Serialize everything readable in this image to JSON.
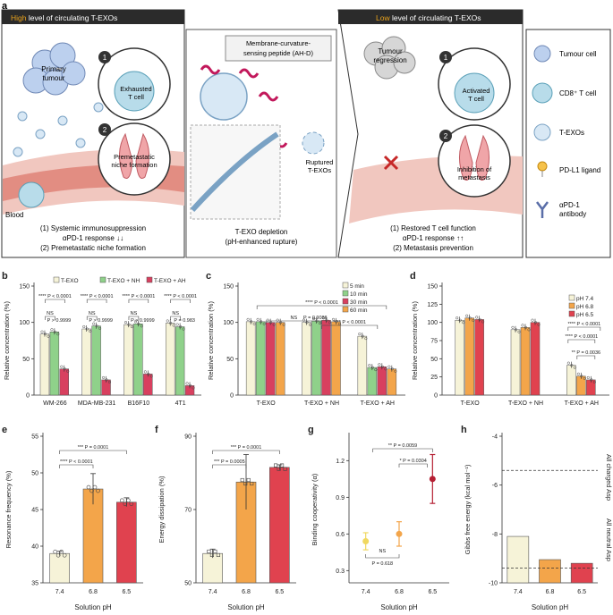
{
  "panel_labels": {
    "a": "a",
    "b": "b",
    "c": "c",
    "d": "d",
    "e": "e",
    "f": "f",
    "g": "g",
    "h": "h"
  },
  "schematic": {
    "left_header_pre": "High",
    "left_header_post": "level of circulating T-EXOs",
    "right_header_pre": "Low",
    "right_header_post": "level of circulating T-EXOs",
    "primary_tumour_1": "Primary",
    "primary_tumour_2": "tumour",
    "exhausted_1": "Exhausted",
    "exhausted_2": "T cell",
    "niche_1": "Premetastatic",
    "niche_2": "niche formation",
    "blood": "Blood",
    "step1": "1",
    "step2": "2",
    "left_caption_1": "(1) Systemic immunosuppression",
    "left_caption_2": "αPD-1 response ↓↓",
    "left_caption_3": "(2) Premetastatic niche formation",
    "peptide_1": "Membrane-curvature-",
    "peptide_2": "sensing peptide (AH-D)",
    "ruptured_1": "Ruptured",
    "ruptured_2": "T-EXOs",
    "mid_caption_1": "T-EXO depletion",
    "mid_caption_2": "(pH-enhanced rupture)",
    "regression_1": "Tumour",
    "regression_2": "regression",
    "activated_1": "Activated",
    "activated_2": "T cell",
    "inhibition_1": "Inhibition of",
    "inhibition_2": "metastasis",
    "right_caption_1": "(1) Restored T cell function",
    "right_caption_2": "αPD-1 response ↑↑",
    "right_caption_3": "(2) Metastasis prevention",
    "legend": [
      "Tumour cell",
      "CD8⁺ T cell",
      "T-EXOs",
      "PD-L1 ligand",
      "αPD-1",
      "antibody"
    ]
  },
  "colors": {
    "cream": "#f6f3d8",
    "green": "#8fd18a",
    "magenta": "#d8405f",
    "orange": "#f3a54a",
    "red": "#e0424f",
    "dark": "#2b2b2b",
    "highlight": "#e8a21c"
  },
  "chart_data": [
    {
      "id": "b",
      "type": "bar",
      "ylabel": "Relative concentration (%)",
      "ylim": [
        0,
        150
      ],
      "yticks": [
        0,
        50,
        100,
        150
      ],
      "categories": [
        "WM-266",
        "MDA-MB-231",
        "B16F10",
        "4T1"
      ],
      "legend": [
        "T-EXO",
        "T-EXO + NH",
        "T-EXO + AH"
      ],
      "series": [
        {
          "name": "T-EXO",
          "values": [
            84,
            91,
            97,
            99
          ]
        },
        {
          "name": "T-EXO + NH",
          "values": [
            87,
            95,
            98,
            94
          ]
        },
        {
          "name": "T-EXO + AH",
          "values": [
            36,
            21,
            29,
            13
          ]
        }
      ],
      "annotations": [
        {
          "text": "**** P < 0.0001",
          "x1": 0,
          "x2": 2
        },
        {
          "text": "NS",
          "x1": 0,
          "x2": 1
        },
        {
          "text": "P > 0.9999",
          "x1": 0,
          "x2": 1
        },
        {
          "text": "**** P < 0.0001",
          "x1": 0,
          "x2": 2
        },
        {
          "text": "NS",
          "x1": 0,
          "x2": 1
        },
        {
          "text": "P > 0.9999",
          "x1": 0,
          "x2": 1
        },
        {
          "text": "**** P < 0.0001",
          "x1": 0,
          "x2": 2
        },
        {
          "text": "NS",
          "x1": 0,
          "x2": 1
        },
        {
          "text": "P > 0.9999",
          "x1": 0,
          "x2": 1
        },
        {
          "text": "**** P < 0.0001",
          "x1": 0,
          "x2": 2
        },
        {
          "text": "NS",
          "x1": 0,
          "x2": 1
        },
        {
          "text": "P = 0.983",
          "x1": 0,
          "x2": 1
        }
      ]
    },
    {
      "id": "c",
      "type": "bar",
      "ylabel": "Relative concentration (%)",
      "ylim": [
        0,
        150
      ],
      "yticks": [
        0,
        50,
        100,
        150
      ],
      "categories": [
        "T-EXO",
        "T-EXO + NH",
        "T-EXO + AH"
      ],
      "legend": [
        "5 min",
        "10 min",
        "30 min",
        "60 min"
      ],
      "series": [
        {
          "name": "5 min",
          "values": [
            101,
            100,
            81
          ]
        },
        {
          "name": "10 min",
          "values": [
            101,
            102,
            38
          ]
        },
        {
          "name": "30 min",
          "values": [
            100,
            103,
            39
          ]
        },
        {
          "name": "60 min",
          "values": [
            100,
            101,
            36
          ]
        }
      ],
      "annotations": [
        {
          "text": "**** P < 0.0001"
        },
        {
          "text": "NS"
        },
        {
          "text": "P = 0.9086"
        },
        {
          "text": "**** P < 0.0001"
        }
      ]
    },
    {
      "id": "d",
      "type": "bar",
      "ylabel": "Relative concentration (%)",
      "ylim": [
        0,
        150
      ],
      "yticks": [
        0,
        25,
        50,
        75,
        100,
        125,
        150
      ],
      "categories": [
        "T-EXO",
        "T-EXO + NH",
        "T-EXO + AH"
      ],
      "legend": [
        "pH 7.4",
        "pH 6.8",
        "pH 6.5"
      ],
      "series": [
        {
          "name": "pH 7.4",
          "values": [
            103,
            90,
            41
          ]
        },
        {
          "name": "pH 6.8",
          "values": [
            106,
            93,
            26
          ]
        },
        {
          "name": "pH 6.5",
          "values": [
            104,
            100,
            21
          ]
        }
      ],
      "annotations": [
        {
          "text": "**** P < 0.0001"
        },
        {
          "text": "**** P < 0.0001"
        },
        {
          "text": "** P = 0.0036"
        }
      ]
    },
    {
      "id": "e",
      "type": "bar",
      "xlabel": "Solution pH",
      "ylabel": "Resonance frequency (%)",
      "ylim": [
        35,
        55
      ],
      "yticks": [
        35,
        40,
        45,
        50,
        55
      ],
      "categories": [
        "7.4",
        "6.8",
        "6.5"
      ],
      "values": [
        39,
        47.8,
        46
      ],
      "errors": [
        0.3,
        2.1,
        0.6
      ],
      "annotations": [
        {
          "text": "*** P = 0.0001"
        },
        {
          "text": "**** P < 0.0001"
        }
      ]
    },
    {
      "id": "f",
      "type": "bar",
      "xlabel": "Solution pH",
      "ylabel": "Energy dissipation (%)",
      "ylim": [
        50,
        90
      ],
      "yticks": [
        50,
        70,
        90
      ],
      "categories": [
        "7.4",
        "6.8",
        "6.5"
      ],
      "values": [
        58,
        77.5,
        81.5
      ],
      "errors": [
        1.2,
        7.5,
        0.7
      ],
      "annotations": [
        {
          "text": "*** P = 0.0001"
        },
        {
          "text": "*** P = 0.0005"
        }
      ]
    },
    {
      "id": "g",
      "type": "scatter",
      "xlabel": "Solution pH",
      "ylabel": "Binding cooperativity (α)",
      "ylim": [
        0.2,
        1.4
      ],
      "yticks": [
        0.3,
        0.6,
        0.9,
        1.2
      ],
      "categories": [
        "7.4",
        "6.8",
        "6.5"
      ],
      "values": [
        0.54,
        0.6,
        1.05
      ],
      "errors": [
        0.07,
        0.1,
        0.2
      ],
      "annotations": [
        {
          "text": "** P = 0.0059"
        },
        {
          "text": "* P = 0.0304"
        },
        {
          "text": "NS"
        },
        {
          "text": "P = 0.618"
        }
      ]
    },
    {
      "id": "h",
      "type": "bar",
      "xlabel": "Solution pH",
      "ylabel": "Gibbs free energy (kcal mol⁻¹)",
      "ylim": [
        -10,
        -4
      ],
      "yticks": [
        -10,
        -8,
        -6,
        -4
      ],
      "categories": [
        "7.4",
        "6.8",
        "6.5"
      ],
      "values": [
        -8.1,
        -9.05,
        -9.2
      ],
      "reference_lines": [
        {
          "label": "All charged Asp",
          "y": -5.4
        },
        {
          "label": "All neutral Asp",
          "y": -9.4
        }
      ]
    }
  ]
}
